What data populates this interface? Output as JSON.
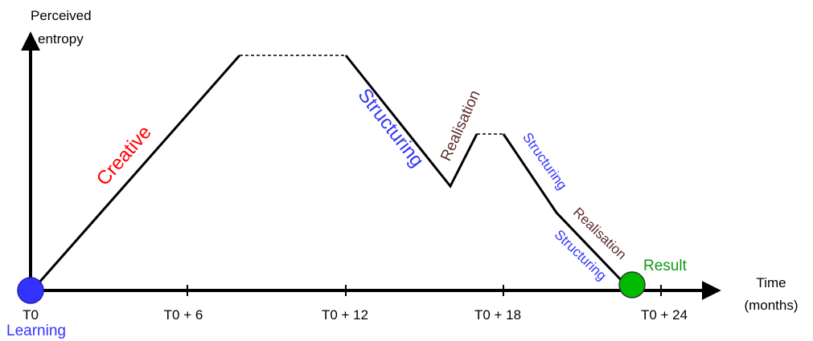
{
  "axes": {
    "y_label_line1": "Perceived",
    "y_label_line2": "entropy",
    "x_label_line1": "Time",
    "x_label_line2": "(months)",
    "ticks": [
      "T0",
      "T0 + 6",
      "T0 + 12",
      "T0 + 18",
      "T0 + 24"
    ]
  },
  "points": {
    "start_label": "Learning",
    "end_label": "Result"
  },
  "phases": {
    "creative": "Creative",
    "structuring_1": "Structuring",
    "realisation_1": "Realisation",
    "structuring_2": "Structuring",
    "realisation_2": "Realisation",
    "structuring_3": "Structuring"
  },
  "colors": {
    "creative": "#ff0000",
    "structuring": "#3333ff",
    "realisation": "#5a2d2d",
    "start_dot": "#3333ff",
    "end_dot": "#00bb00",
    "result_text": "#119911"
  }
}
